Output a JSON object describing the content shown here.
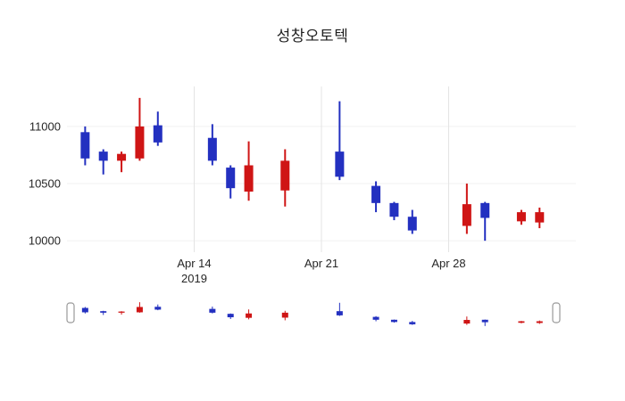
{
  "chart_data": {
    "type": "candlestick",
    "title": "성창오토텍",
    "x_ticks": [
      {
        "date": "2019-04-14",
        "label": "Apr 14",
        "sublabel": "2019"
      },
      {
        "date": "2019-04-21",
        "label": "Apr 21",
        "sublabel": ""
      },
      {
        "date": "2019-04-28",
        "label": "Apr 28",
        "sublabel": ""
      }
    ],
    "y_ticks": [
      10000,
      10500,
      11000
    ],
    "x_range": [
      "2019-04-07",
      "2019-05-05"
    ],
    "y_range": [
      9900,
      11350
    ],
    "increasing_color": "#cf1515",
    "decreasing_color": "#2330c0",
    "legend": "none",
    "grid": "on",
    "candles": [
      {
        "date": "2019-04-08",
        "open": 10950,
        "high": 11000,
        "low": 10660,
        "close": 10720
      },
      {
        "date": "2019-04-09",
        "open": 10780,
        "high": 10800,
        "low": 10580,
        "close": 10700
      },
      {
        "date": "2019-04-10",
        "open": 10700,
        "high": 10780,
        "low": 10600,
        "close": 10760
      },
      {
        "date": "2019-04-11",
        "open": 10720,
        "high": 11250,
        "low": 10700,
        "close": 11000
      },
      {
        "date": "2019-04-12",
        "open": 11010,
        "high": 11130,
        "low": 10830,
        "close": 10860
      },
      {
        "date": "2019-04-15",
        "open": 10900,
        "high": 11020,
        "low": 10660,
        "close": 10700
      },
      {
        "date": "2019-04-16",
        "open": 10640,
        "high": 10660,
        "low": 10370,
        "close": 10460
      },
      {
        "date": "2019-04-17",
        "open": 10430,
        "high": 10870,
        "low": 10350,
        "close": 10660
      },
      {
        "date": "2019-04-19",
        "open": 10440,
        "high": 10800,
        "low": 10300,
        "close": 10700
      },
      {
        "date": "2019-04-22",
        "open": 10780,
        "high": 11220,
        "low": 10530,
        "close": 10560
      },
      {
        "date": "2019-04-24",
        "open": 10480,
        "high": 10520,
        "low": 10250,
        "close": 10330
      },
      {
        "date": "2019-04-25",
        "open": 10330,
        "high": 10340,
        "low": 10180,
        "close": 10210
      },
      {
        "date": "2019-04-26",
        "open": 10210,
        "high": 10270,
        "low": 10060,
        "close": 10090
      },
      {
        "date": "2019-04-29",
        "open": 10130,
        "high": 10500,
        "low": 10060,
        "close": 10320
      },
      {
        "date": "2019-04-30",
        "open": 10330,
        "high": 10340,
        "low": 10000,
        "close": 10200
      },
      {
        "date": "2019-05-02",
        "open": 10170,
        "high": 10270,
        "low": 10140,
        "close": 10250
      },
      {
        "date": "2019-05-03",
        "open": 10160,
        "high": 10290,
        "low": 10110,
        "close": 10250
      }
    ]
  }
}
